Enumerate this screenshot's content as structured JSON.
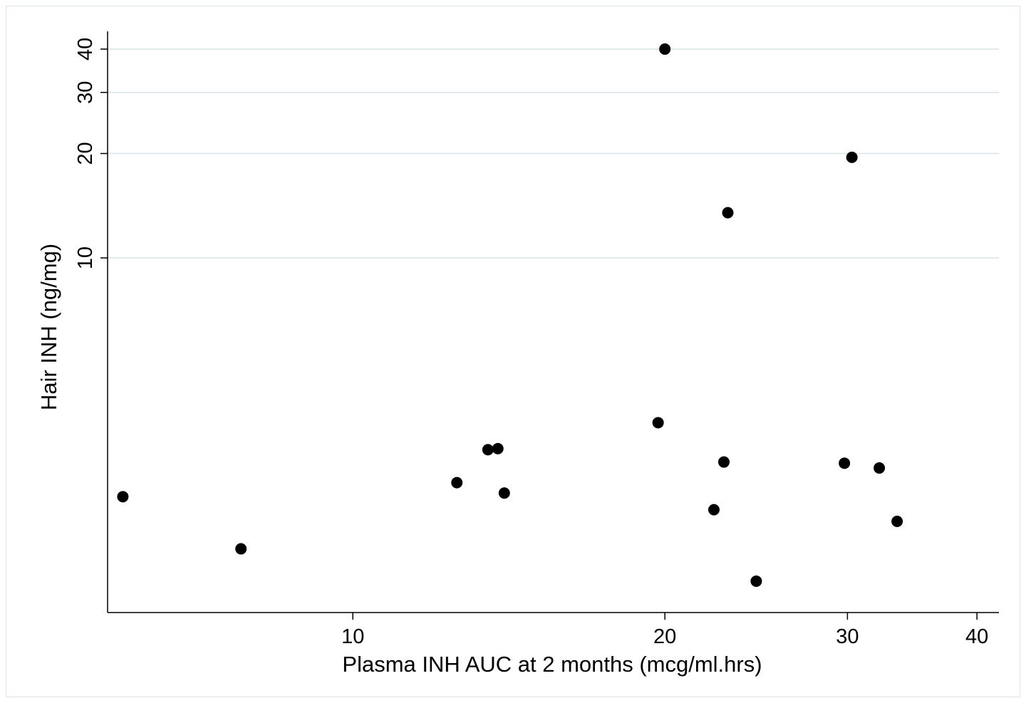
{
  "chart_data": {
    "type": "scatter",
    "xlabel": "Plasma INH AUC at 2 months (mcg/ml.hrs)",
    "ylabel": "Hair INH (ng/mg)",
    "x_scale": "log",
    "y_scale": "log",
    "xlim": [
      5.8,
      42
    ],
    "ylim": [
      0.95,
      45
    ],
    "x_ticks": [
      10,
      20,
      30,
      40
    ],
    "x_tick_labels": [
      "10",
      "20",
      "30",
      "40"
    ],
    "y_ticks": [
      10,
      20,
      30,
      40
    ],
    "y_tick_labels": [
      "10",
      "20",
      "30",
      "40"
    ],
    "grid": "horizontal at y ticks",
    "series": [
      {
        "color": "#000000",
        "points": [
          {
            "x": 6.0,
            "y": 2.05
          },
          {
            "x": 7.8,
            "y": 1.45
          },
          {
            "x": 12.6,
            "y": 2.25
          },
          {
            "x": 13.5,
            "y": 2.8
          },
          {
            "x": 13.8,
            "y": 2.82
          },
          {
            "x": 14.0,
            "y": 2.1
          },
          {
            "x": 19.7,
            "y": 3.35
          },
          {
            "x": 20.0,
            "y": 40.0
          },
          {
            "x": 22.3,
            "y": 1.88
          },
          {
            "x": 22.8,
            "y": 2.58
          },
          {
            "x": 23.0,
            "y": 13.5
          },
          {
            "x": 24.5,
            "y": 1.17
          },
          {
            "x": 29.8,
            "y": 2.56
          },
          {
            "x": 30.3,
            "y": 19.5
          },
          {
            "x": 32.2,
            "y": 2.48
          },
          {
            "x": 33.5,
            "y": 1.74
          }
        ]
      }
    ]
  }
}
